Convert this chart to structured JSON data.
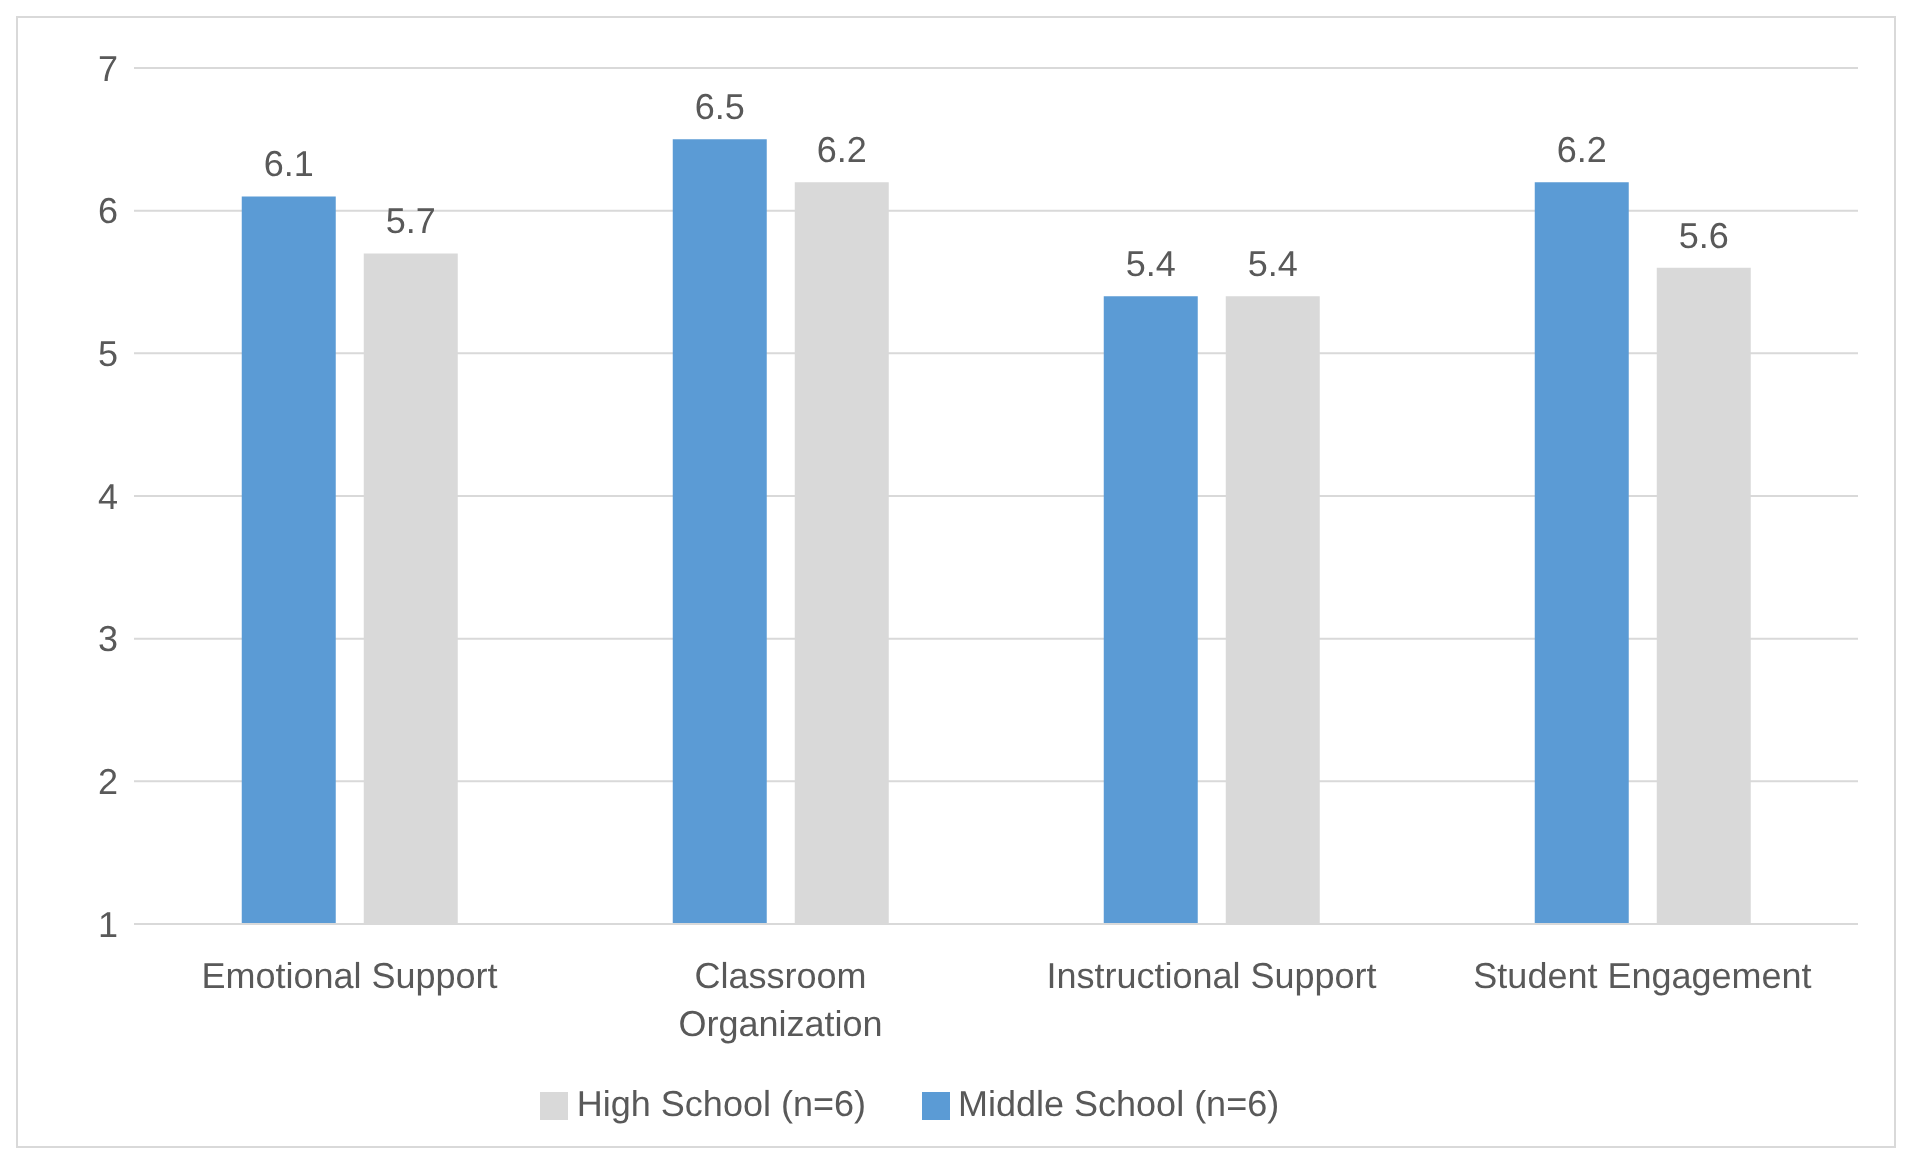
{
  "chart_data": {
    "type": "bar",
    "categories": [
      "Emotional Support",
      "Classroom Organization",
      "Instructional Support",
      "Student Engagement"
    ],
    "series": [
      {
        "name": "Middle School (n=6)",
        "color": "#5b9bd5",
        "values": [
          6.1,
          6.5,
          5.4,
          6.2
        ]
      },
      {
        "name": "High School (n=6)",
        "color": "#d9d9d9",
        "values": [
          5.7,
          6.2,
          5.4,
          5.6
        ]
      }
    ],
    "ylim": [
      1,
      7
    ],
    "yticks": [
      1,
      2,
      3,
      4,
      5,
      6,
      7
    ],
    "grid": "y",
    "legend": "bottom",
    "data_labels": true
  }
}
